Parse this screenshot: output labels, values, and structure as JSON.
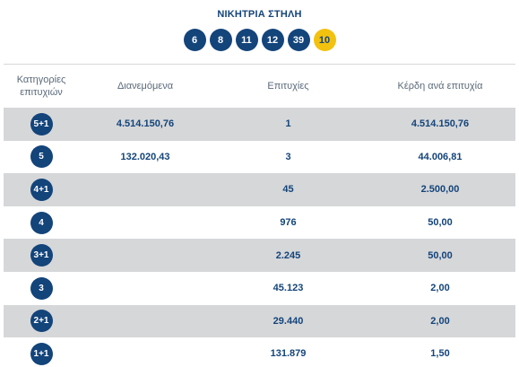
{
  "header": {
    "title": "ΝΙΚΗΤΡΙΑ ΣΤΗΛΗ",
    "numbers": [
      "6",
      "8",
      "11",
      "12",
      "39"
    ],
    "bonus": "10"
  },
  "table": {
    "columns": {
      "category_line1": "Κατηγορίες",
      "category_line2": "επιτυχιών",
      "distributed": "Διανεμόμενα",
      "winners": "Επιτυχίες",
      "prize": "Κέρδη ανά επιτυχία"
    },
    "rows": [
      {
        "category": "5+1",
        "distributed": "4.514.150,76",
        "winners": "1",
        "prize": "4.514.150,76"
      },
      {
        "category": "5",
        "distributed": "132.020,43",
        "winners": "3",
        "prize": "44.006,81"
      },
      {
        "category": "4+1",
        "distributed": "",
        "winners": "45",
        "prize": "2.500,00"
      },
      {
        "category": "4",
        "distributed": "",
        "winners": "976",
        "prize": "50,00"
      },
      {
        "category": "3+1",
        "distributed": "",
        "winners": "2.245",
        "prize": "50,00"
      },
      {
        "category": "3",
        "distributed": "",
        "winners": "45.123",
        "prize": "2,00"
      },
      {
        "category": "2+1",
        "distributed": "",
        "winners": "29.440",
        "prize": "2,00"
      },
      {
        "category": "1+1",
        "distributed": "",
        "winners": "131.879",
        "prize": "1,50"
      }
    ]
  },
  "colors": {
    "navy": "#13447a",
    "bonus_yellow": "#f2c20f",
    "row_shade": "#d6d7d9"
  }
}
